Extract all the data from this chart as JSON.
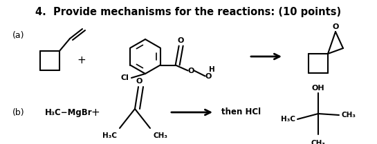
{
  "title": "4.  Provide mechanisms for the reactions: (10 points)",
  "title_fontsize": 10.5,
  "bg_color": "#ffffff",
  "text_color": "#000000",
  "label_a": "(a)",
  "label_b": "(b)"
}
